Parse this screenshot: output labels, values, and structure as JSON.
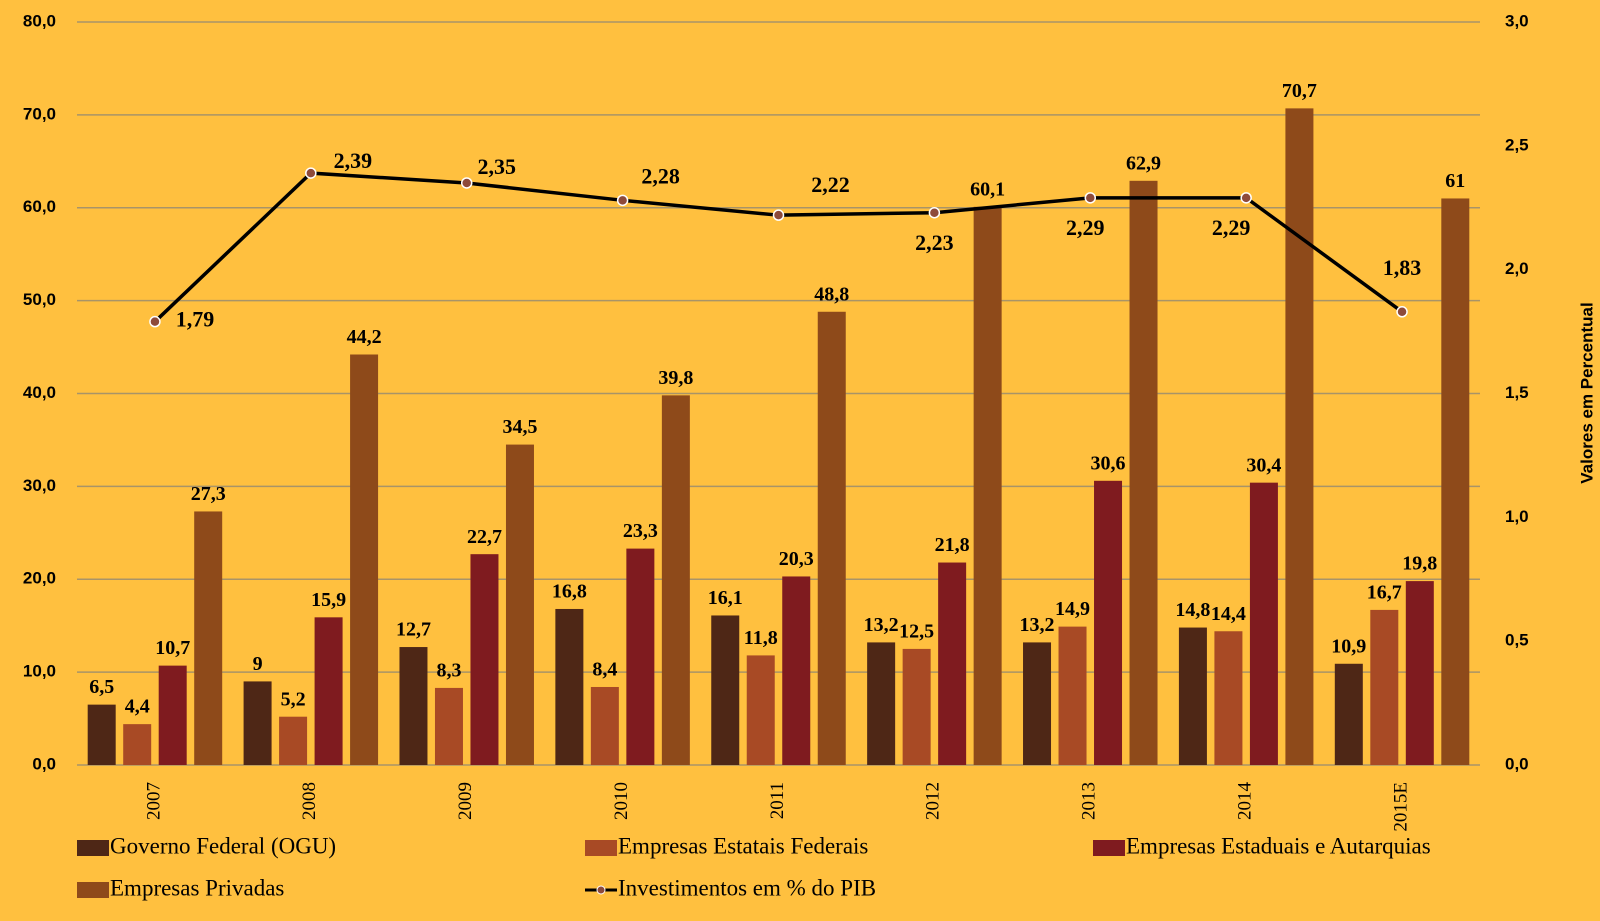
{
  "chart_data": {
    "type": "bar",
    "categories": [
      "2007",
      "2008",
      "2009",
      "2010",
      "2011",
      "2012",
      "2013",
      "2014",
      "2015E"
    ],
    "series": [
      {
        "name": "Governo Federal (OGU)",
        "color": "#4e2716",
        "values": [
          6.5,
          9,
          12.7,
          16.8,
          16.1,
          13.2,
          13.2,
          14.8,
          10.9
        ],
        "value_labels": [
          "6,5",
          "9",
          "12,7",
          "16,8",
          "16,1",
          "13,2",
          "13,2",
          "14,8",
          "10,9"
        ]
      },
      {
        "name": "Empresas Estatais Federais",
        "color": "#a84a25",
        "values": [
          4.4,
          5.2,
          8.3,
          8.4,
          11.8,
          12.5,
          14.9,
          14.4,
          16.7
        ],
        "value_labels": [
          "4,4",
          "5,2",
          "8,3",
          "8,4",
          "11,8",
          "12,5",
          "14,9",
          "14,4",
          "16,7"
        ]
      },
      {
        "name": "Empresas Estaduais e Autarquias",
        "color": "#7f1b1f",
        "values": [
          10.7,
          15.9,
          22.7,
          23.3,
          20.3,
          21.8,
          30.6,
          30.4,
          19.8
        ],
        "value_labels": [
          "10,7",
          "15,9",
          "22,7",
          "23,3",
          "20,3",
          "21,8",
          "30,6",
          "30,4",
          "19,8"
        ]
      },
      {
        "name": "Empresas Privadas",
        "color": "#8e4a1a",
        "values": [
          27.3,
          44.2,
          34.5,
          39.8,
          48.8,
          60.1,
          62.9,
          70.7,
          61
        ],
        "value_labels": [
          "27,3",
          "44,2",
          "34,5",
          "39,8",
          "48,8",
          "60,1",
          "62,9",
          "70,7",
          "61"
        ]
      },
      {
        "name": "Investimentos em % do PIB",
        "type": "line",
        "axis": "y2",
        "color": "#000000",
        "values": [
          1.79,
          2.39,
          2.35,
          2.28,
          2.22,
          2.23,
          2.29,
          2.29,
          1.83
        ],
        "value_labels": [
          "1,79",
          "2,39",
          "2,35",
          "2,28",
          "2,22",
          "2,23",
          "2,29",
          "2,29",
          "1,83"
        ]
      }
    ],
    "ylim": [
      0,
      80
    ],
    "yticks": [
      {
        "value": 0,
        "label": "0,0"
      },
      {
        "value": 10,
        "label": "10,0"
      },
      {
        "value": 20,
        "label": "20,0"
      },
      {
        "value": 30,
        "label": "30,0"
      },
      {
        "value": 40,
        "label": "40,0"
      },
      {
        "value": 50,
        "label": "50,0"
      },
      {
        "value": 60,
        "label": "60,0"
      },
      {
        "value": 70,
        "label": "70,0"
      },
      {
        "value": 80,
        "label": "80,0"
      }
    ],
    "y2label": "Valores em Percentual",
    "y2lim": [
      0,
      3
    ],
    "y2ticks": [
      {
        "value": 0,
        "label": "0,0"
      },
      {
        "value": 0.5,
        "label": "0,5"
      },
      {
        "value": 1,
        "label": "1,0"
      },
      {
        "value": 1.5,
        "label": "1,5"
      },
      {
        "value": 2,
        "label": "2,0"
      },
      {
        "value": 2.5,
        "label": "2,5"
      },
      {
        "value": 3,
        "label": "3,0"
      }
    ],
    "grid": true,
    "legend": "bottom"
  }
}
